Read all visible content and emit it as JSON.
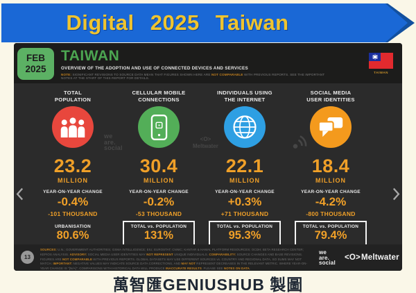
{
  "banner": {
    "title": "Digital 2025 Taiwan",
    "bg_color": "#1A68D6",
    "text_color": "#EFC42F"
  },
  "slide": {
    "badge": {
      "month": "FEB",
      "year": "2025"
    },
    "title": "TAIWAN",
    "subtitle": "OVERVIEW OF THE ADOPTION AND USE OF CONNECTED DEVICES AND SERVICES",
    "note_segments": [
      {
        "t": "NOTE:",
        "h": true
      },
      {
        "t": " SIGNIFICANT REVISIONS TO SOURCE DATA MEAN THAT FIGURES SHOWN HERE ARE ",
        "h": false
      },
      {
        "t": "NOT COMPARABLE",
        "h": true
      },
      {
        "t": " WITH PREVIOUS REPORTS. SEE THE IMPORTANT NOTES AT THE START OF THIS REPORT FOR DETAILS.",
        "h": false
      }
    ],
    "flag": {
      "label": "TAIWAN",
      "field_color": "#E22A2E",
      "canton_color": "#1A2F9E"
    },
    "columns": [
      {
        "title1": "TOTAL",
        "title2": "POPULATION",
        "icon": "people-icon",
        "color": "#E8473D",
        "value": "23.2",
        "unit": "MILLION",
        "change_label": "YEAR-ON-YEAR CHANGE",
        "change_percent": "-0.4%",
        "change_abs": "-101 THOUSAND",
        "metric_label": "URBANISATION",
        "metric_value": "80.6%",
        "metric_boxed": false
      },
      {
        "title1": "CELLULAR MOBILE",
        "title2": "CONNECTIONS",
        "icon": "smartphone-icon",
        "color": "#53AE58",
        "value": "30.4",
        "unit": "MILLION",
        "change_label": "YEAR-ON-YEAR CHANGE",
        "change_percent": "-0.2%",
        "change_abs": "-53 THOUSAND",
        "metric_label": "TOTAL vs. POPULATION",
        "metric_value": "131%",
        "metric_boxed": true
      },
      {
        "title1": "INDIVIDUALS USING",
        "title2": "THE INTERNET",
        "icon": "globe-icon",
        "color": "#2E9FE3",
        "value": "22.1",
        "unit": "MILLION",
        "change_label": "YEAR-ON-YEAR CHANGE",
        "change_percent": "+0.3%",
        "change_abs": "+71 THOUSAND",
        "metric_label": "TOTAL vs. POPULATION",
        "metric_value": "95.3%",
        "metric_boxed": true
      },
      {
        "title1": "SOCIAL MEDIA",
        "title2": "USER IDENTITIES",
        "icon": "chat-icon",
        "color": "#F49A1D",
        "value": "18.4",
        "unit": "MILLION",
        "change_label": "YEAR-ON-YEAR CHANGE",
        "change_percent": "-4.2%",
        "change_abs": "-800 THOUSAND",
        "metric_label": "TOTAL vs. POPULATION",
        "metric_value": "79.4%",
        "metric_boxed": true
      }
    ],
    "watermarks": {
      "we_are_social": [
        "we",
        "are.",
        "social"
      ],
      "meltwater_mark": "<O>",
      "meltwater_name": "Meltwater"
    },
    "footer": {
      "page_number": "13",
      "sources_segments": [
        {
          "t": "SOURCES:",
          "h": true
        },
        {
          "t": " U.N.; GOVERNMENT AUTHORITIES; GSMA INTELLIGENCE; EIU; EUROSTAT; CNNIC; KANTAR & HAMAL PLATFORM RESOURCES; OCDH; BETA RESEARCH CENTER; KEPIOS ANALYSIS. ",
          "h": false
        },
        {
          "t": "ADVISORY:",
          "h": true
        },
        {
          "t": " SOCIAL MEDIA USER IDENTITIES MAY ",
          "h": false
        },
        {
          "t": "NOT REPRESENT",
          "h": true
        },
        {
          "t": " UNIQUE INDIVIDUALS. ",
          "h": false
        },
        {
          "t": "COMPARABILITY:",
          "h": true
        },
        {
          "t": " SOURCE CHANGES AND BASE REVISIONS. FIGURES ARE ",
          "h": false
        },
        {
          "t": "NOT COMPARABLE",
          "h": true
        },
        {
          "t": " WITH PREVIOUS REPORTS. GLOBAL DATASETS MAY USE DIFFERENT SOURCES vs. COUNTRY AND REGIONAL DATA, SO SUMS MAY NOT MATCH. ",
          "h": false
        },
        {
          "t": "IMPORTANT:",
          "h": true
        },
        {
          "t": " NEGATIVE VALUES MAY INDICATE SOURCE DATA CORRECTIONS, AND ",
          "h": false
        },
        {
          "t": "MAY NOT",
          "h": true
        },
        {
          "t": " REPRESENT DECREASES IN THE RELEVANT METRIC. WHERE YEAR-ON-YEAR CHANGE IS \"[N/A]\", COMPARISONS WITH HISTORICAL DATA WILL PRODUCE ",
          "h": false
        },
        {
          "t": "INACCURATE RESULTS",
          "h": true
        },
        {
          "t": ". PLEASE SEE ",
          "h": false
        },
        {
          "t": "NOTES ON DATA",
          "h": true
        },
        {
          "t": ".",
          "h": false
        }
      ],
      "logo_we_are_social": [
        "we",
        "are.",
        "social"
      ],
      "logo_meltwater_mark": "<O>",
      "logo_meltwater_name": "Meltwater"
    }
  },
  "caption": "萬智匯GENIUSHUB 製圖",
  "chart_data": {
    "type": "table",
    "title": "Digital 2025 Taiwan — Overview of the adoption and use of connected devices and services (Feb 2025)",
    "categories": [
      "Total population",
      "Cellular mobile connections",
      "Individuals using the internet",
      "Social media user identities"
    ],
    "series": [
      {
        "name": "Total (millions)",
        "values": [
          23.2,
          30.4,
          22.1,
          18.4
        ]
      },
      {
        "name": "Year-on-year change (%)",
        "values": [
          -0.4,
          -0.2,
          0.3,
          -4.2
        ]
      },
      {
        "name": "Year-on-year change (thousands)",
        "values": [
          -101,
          -53,
          71,
          -800
        ]
      },
      {
        "name": "Share vs. population (%)",
        "values": [
          80.6,
          131,
          95.3,
          79.4
        ]
      }
    ],
    "annotations": "First category's 80.6% is urbanisation; other three are total vs. population. Page 13 of report."
  }
}
